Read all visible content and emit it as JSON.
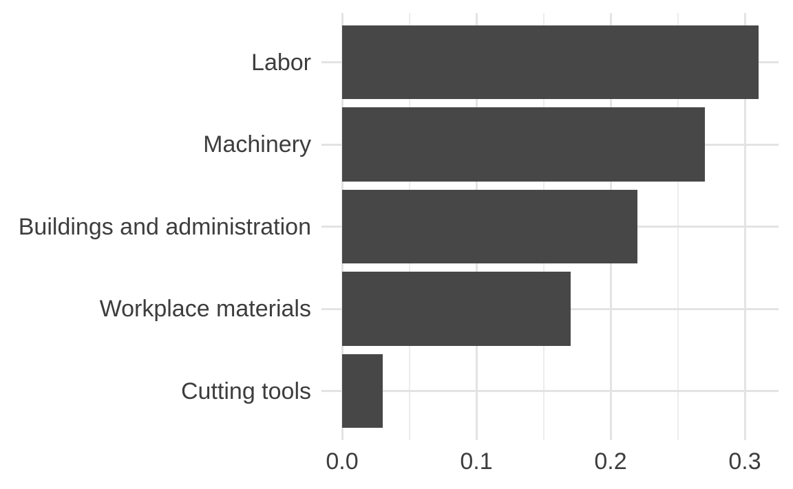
{
  "chart_data": {
    "type": "bar",
    "orientation": "horizontal",
    "title": "",
    "xlabel": "",
    "ylabel": "",
    "categories": [
      "Labor",
      "Machinery",
      "Buildings and administration",
      "Workplace materials",
      "Cutting tools"
    ],
    "values": [
      0.31,
      0.27,
      0.22,
      0.17,
      0.03
    ],
    "x_tick_labels": [
      "0.0",
      "0.1",
      "0.2",
      "0.3"
    ],
    "x_tick_values": [
      0.0,
      0.1,
      0.2,
      0.3
    ],
    "x_minor_tick_values": [
      0.05,
      0.15,
      0.25
    ],
    "xlim": [
      -0.0155,
      0.3255
    ],
    "grid": true,
    "legend": false,
    "colors": {
      "bar_fill": "#474747",
      "grid_major": "#E3E3E3",
      "grid_minor": "#ECECEC",
      "axis_text": "#3D3D3D",
      "background": "#FFFFFF"
    }
  }
}
